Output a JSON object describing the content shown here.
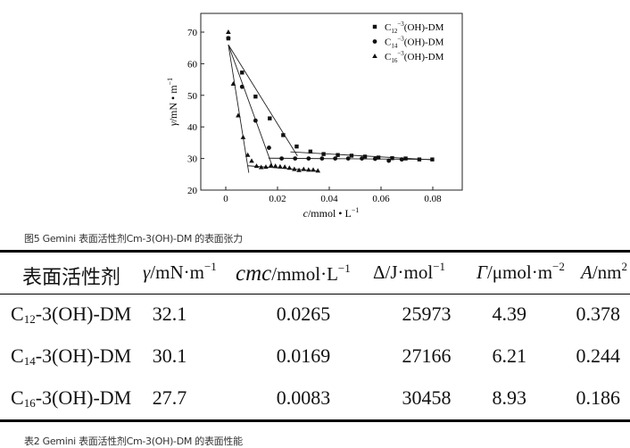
{
  "figure_caption": "图5 Gemini 表面活性剂Cm-3(OH)-DM 的表面张力",
  "table_caption": "表2 Gemini 表面活性剂Cm-3(OH)-DM 的表面性能",
  "chart_data": {
    "type": "scatter",
    "xlabel": {
      "italic": "c",
      "rest": "/mmol • L",
      "sup": "−1"
    },
    "ylabel": {
      "italic": "γ",
      "rest": "/mN • m",
      "sup": "−1"
    },
    "xlim": [
      -0.01,
      0.09
    ],
    "ylim": [
      20,
      75
    ],
    "xticks": [
      "0",
      "0.02",
      "0.04",
      "0.06",
      "0.08"
    ],
    "yticks": [
      "20",
      "30",
      "40",
      "50",
      "60",
      "70"
    ],
    "legend_position": "top-right",
    "series": [
      {
        "name": {
          "base": "C",
          "sub": "12",
          "sup": "−3",
          "rest": "(OH)-DM"
        },
        "marker": "square",
        "x": [
          0.001,
          0.0063,
          0.0115,
          0.017,
          0.0222,
          0.0274,
          0.0327,
          0.0378,
          0.0433,
          0.0486,
          0.0538,
          0.059,
          0.0643,
          0.0695,
          0.0748,
          0.0798
        ],
        "y": [
          68,
          57.2,
          49.6,
          42.7,
          37.4,
          33.8,
          32.2,
          31.4,
          31.1,
          30.9,
          30.6,
          30.3,
          30.1,
          30.0,
          29.7,
          29.7
        ],
        "fit_lines": [
          [
            [
              0.001,
              66
            ],
            [
              0.0277,
              30.8
            ]
          ],
          [
            [
              0.025,
              32.1
            ],
            [
              0.08,
              29.6
            ]
          ]
        ]
      },
      {
        "name": {
          "base": "C",
          "sub": "14",
          "sup": "−3",
          "rest": "(OH)-DM"
        },
        "marker": "circle",
        "x": [
          0.001,
          0.0063,
          0.0115,
          0.0167,
          0.0216,
          0.0268,
          0.032,
          0.0372,
          0.0423,
          0.0473,
          0.0526,
          0.0577,
          0.063,
          0.068
        ],
        "y": [
          68.1,
          52.7,
          42,
          33.4,
          30,
          30,
          30,
          30,
          30,
          30,
          30,
          29.9,
          29.3,
          29.7
        ],
        "fit_lines": [
          [
            [
              0.001,
              66
            ],
            [
              0.0178,
              28
            ]
          ],
          [
            [
              0.0165,
              30.1
            ],
            [
              0.08,
              29.7
            ]
          ]
        ]
      },
      {
        "name": {
          "base": "C",
          "sub": "16",
          "sup": "−3",
          "rest": "(OH)-DM"
        },
        "marker": "triangle",
        "x": [
          0.001,
          0.0029,
          0.0048,
          0.0067,
          0.0085,
          0.01,
          0.0119,
          0.0137,
          0.0155,
          0.0175,
          0.0192,
          0.021,
          0.0228,
          0.0246,
          0.0265,
          0.0283,
          0.0301,
          0.032,
          0.0338,
          0.0356
        ],
        "y": [
          70,
          53.6,
          43.6,
          36.7,
          31.1,
          29.2,
          27.6,
          27.2,
          27.3,
          27.8,
          27.6,
          27.4,
          27.3,
          27,
          26.6,
          26.3,
          26.6,
          26.4,
          26.4,
          26.1
        ],
        "fit_lines": [
          [
            [
              0.001,
              66
            ],
            [
              0.0089,
              25.5
            ]
          ],
          [
            [
              0.0085,
              27.7
            ],
            [
              0.0356,
              26.1
            ]
          ]
        ]
      }
    ]
  },
  "table": {
    "headers": [
      {
        "text": "表面活性剂"
      },
      {
        "italic": "γ",
        "rest": "/mN·m",
        "sup": "−1"
      },
      {
        "italic": "cmc",
        "rest": "/mmol·L",
        "sup": "−1"
      },
      {
        "italic": "",
        "rest": "Δ/J·mol",
        "sup": "−1"
      },
      {
        "italic": "Γ",
        "rest": "/μmol·m",
        "sup": "−2"
      },
      {
        "italic": "A",
        "rest": "/nm",
        "sup": "2"
      }
    ],
    "rows": [
      {
        "name": {
          "base": "C",
          "sub": "12",
          "rest": "-3(OH)-DM"
        },
        "values": [
          "32.1",
          "0.0265",
          "25973",
          "4.39",
          "0.378"
        ]
      },
      {
        "name": {
          "base": "C",
          "sub": "14",
          "rest": "-3(OH)-DM"
        },
        "values": [
          "30.1",
          "0.0169",
          "27166",
          "6.21",
          "0.244"
        ]
      },
      {
        "name": {
          "base": "C",
          "sub": "16",
          "rest": "-3(OH)-DM"
        },
        "values": [
          "27.7",
          "0.0083",
          "30458",
          "8.93",
          "0.186"
        ]
      }
    ]
  }
}
